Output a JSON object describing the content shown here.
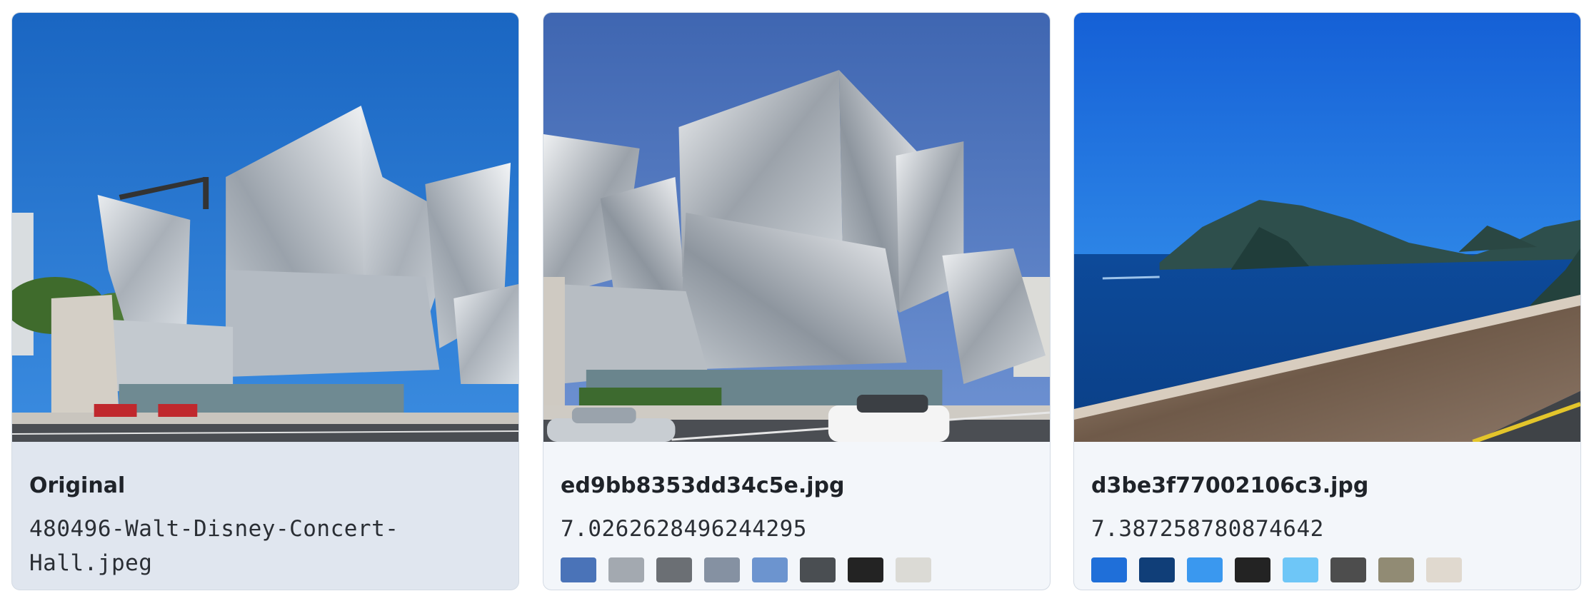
{
  "cards": [
    {
      "title": "Original",
      "subtitle": "480496-Walt-Disney-Concert-Hall.jpeg",
      "image": "walt-disney-concert-hall-photo"
    },
    {
      "title": "ed9bb8353dd34c5e.jpg",
      "subtitle": "7.0262628496244295",
      "image": "walt-disney-concert-hall-photo",
      "swatches": [
        "#4a73b8",
        "#a3a9b0",
        "#6b6f74",
        "#8591a2",
        "#6c94cf",
        "#4a4e52",
        "#232323",
        "#dbdad5"
      ]
    },
    {
      "title": "d3be3f77002106c3.jpg",
      "subtitle": "7.387258780874642",
      "image": "coastal-mountain-sea-photo",
      "swatches": [
        "#1f6fd9",
        "#103e78",
        "#3a98ef",
        "#232323",
        "#6ec6f7",
        "#4d4d4d",
        "#918b74",
        "#e0d9cf"
      ]
    }
  ]
}
